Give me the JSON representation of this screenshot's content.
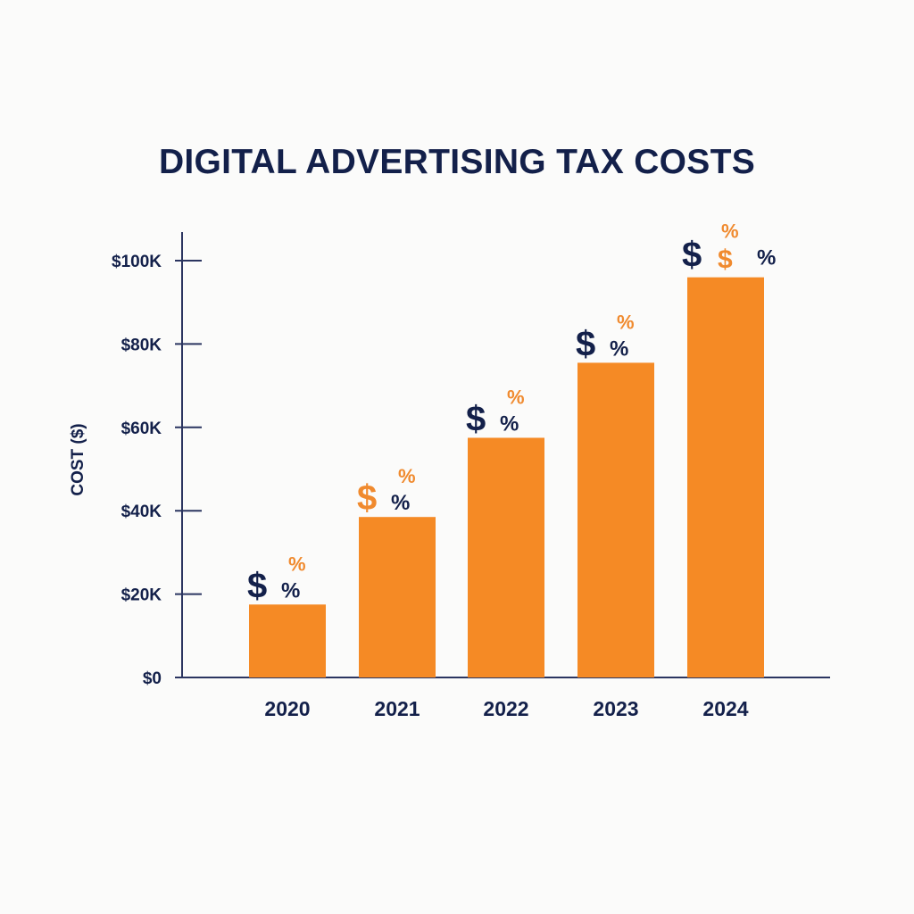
{
  "chart_data": {
    "type": "bar",
    "title": "DIGITAL ADVERTISING TAX COSTS",
    "ylabel": "COST ($)",
    "xlabel": "",
    "categories": [
      "2020",
      "2021",
      "2022",
      "2023",
      "2024"
    ],
    "values": [
      17500,
      38500,
      57500,
      75500,
      96000
    ],
    "ylim": [
      0,
      100000
    ],
    "yticks": [
      0,
      20000,
      40000,
      60000,
      80000,
      100000
    ],
    "ytick_labels": [
      "$0",
      "$20K",
      "$40K",
      "$60K",
      "$80K",
      "$100K"
    ],
    "grid": false,
    "legend": "none",
    "bar_symbols": [
      [
        "$",
        "%",
        "%"
      ],
      [
        "$",
        "%",
        "%"
      ],
      [
        "$",
        "%",
        "%"
      ],
      [
        "$",
        "%",
        "%"
      ],
      [
        "$",
        "$",
        "%",
        "%"
      ]
    ]
  },
  "colors": {
    "bar": "#f58a25",
    "text": "#13204a",
    "axis": "#2b3560",
    "accent": "#f08a2e",
    "background": "#fbfbfa"
  }
}
